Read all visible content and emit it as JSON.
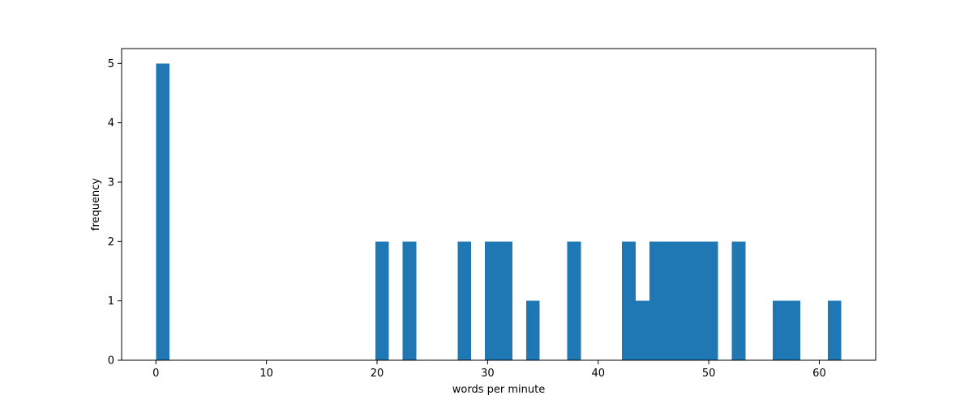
{
  "chart_data": {
    "type": "bar",
    "chart_kind": "histogram",
    "title": "",
    "xlabel": "words per minute",
    "ylabel": "frequency",
    "xlim": [
      -3.1,
      65.1
    ],
    "ylim": [
      0,
      5.25
    ],
    "xticks": [
      0,
      10,
      20,
      30,
      40,
      50,
      60
    ],
    "yticks": [
      0,
      1,
      2,
      3,
      4,
      5
    ],
    "bin_width": 1.24,
    "bar_color": "#1f77b4",
    "grid": false,
    "legend": "none",
    "bins": [
      {
        "x0": 0.0,
        "x1": 1.24,
        "count": 5
      },
      {
        "x0": 19.84,
        "x1": 21.08,
        "count": 2
      },
      {
        "x0": 22.32,
        "x1": 23.56,
        "count": 2
      },
      {
        "x0": 27.28,
        "x1": 28.52,
        "count": 2
      },
      {
        "x0": 29.76,
        "x1": 31.0,
        "count": 2
      },
      {
        "x0": 31.0,
        "x1": 32.24,
        "count": 2
      },
      {
        "x0": 33.48,
        "x1": 34.72,
        "count": 1
      },
      {
        "x0": 37.2,
        "x1": 38.44,
        "count": 2
      },
      {
        "x0": 42.16,
        "x1": 43.4,
        "count": 2
      },
      {
        "x0": 43.4,
        "x1": 44.64,
        "count": 1
      },
      {
        "x0": 44.64,
        "x1": 45.88,
        "count": 2
      },
      {
        "x0": 45.88,
        "x1": 47.12,
        "count": 2
      },
      {
        "x0": 47.12,
        "x1": 48.36,
        "count": 2
      },
      {
        "x0": 48.36,
        "x1": 49.6,
        "count": 2
      },
      {
        "x0": 49.6,
        "x1": 50.84,
        "count": 2
      },
      {
        "x0": 52.08,
        "x1": 53.32,
        "count": 2
      },
      {
        "x0": 55.8,
        "x1": 57.04,
        "count": 1
      },
      {
        "x0": 57.04,
        "x1": 58.28,
        "count": 1
      },
      {
        "x0": 60.76,
        "x1": 62.0,
        "count": 1
      }
    ]
  }
}
